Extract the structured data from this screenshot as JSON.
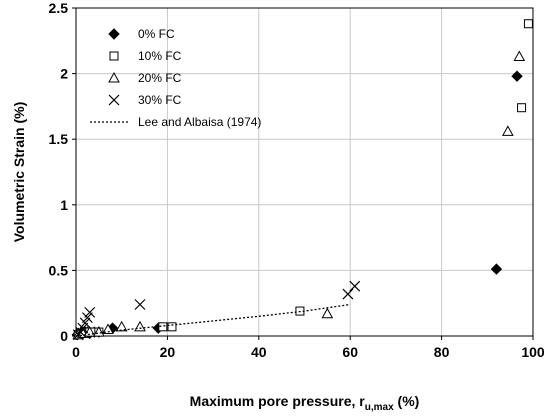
{
  "chart_data": {
    "type": "scatter",
    "xlabel": "Maximum pore pressure, r",
    "xlabel_sub": "u,max",
    "xlabel_suffix": " (%)",
    "ylabel": "Volumetric Strain (%)",
    "xlim": [
      0,
      100
    ],
    "ylim": [
      0,
      2.5
    ],
    "xticks": [
      0,
      20,
      40,
      60,
      80,
      100
    ],
    "yticks": [
      0,
      0.5,
      1,
      1.5,
      2,
      2.5
    ],
    "xtick_labels": [
      "0",
      "20",
      "40",
      "60",
      "80",
      "100"
    ],
    "ytick_labels": [
      "0",
      "0.5",
      "1",
      "1.5",
      "2",
      "2.5"
    ],
    "grid": true,
    "legend_position": "top-left",
    "series": [
      {
        "name": "0% FC",
        "marker": "diamond-filled",
        "points": [
          [
            0.3,
            0.01
          ],
          [
            0.6,
            0.02
          ],
          [
            1.0,
            0.02
          ],
          [
            1.5,
            0.03
          ],
          [
            2.0,
            0.03
          ],
          [
            2.5,
            0.03
          ],
          [
            3.0,
            0.02
          ],
          [
            4.0,
            0.03
          ],
          [
            5.0,
            0.03
          ],
          [
            8.0,
            0.06
          ],
          [
            18.0,
            0.06
          ],
          [
            92.0,
            0.51
          ],
          [
            96.5,
            1.98
          ]
        ]
      },
      {
        "name": "10% FC",
        "marker": "square-open",
        "points": [
          [
            0.5,
            0.01
          ],
          [
            1.0,
            0.02
          ],
          [
            2.0,
            0.03
          ],
          [
            3.0,
            0.03
          ],
          [
            4.0,
            0.03
          ],
          [
            5.0,
            0.03
          ],
          [
            19.0,
            0.07
          ],
          [
            21.0,
            0.07
          ],
          [
            49.0,
            0.19
          ],
          [
            97.5,
            1.74
          ],
          [
            99.0,
            2.38
          ]
        ]
      },
      {
        "name": "20% FC",
        "marker": "triangle-open",
        "points": [
          [
            0.5,
            0.01
          ],
          [
            1.5,
            0.02
          ],
          [
            3.0,
            0.03
          ],
          [
            5.0,
            0.03
          ],
          [
            7.0,
            0.05
          ],
          [
            10.0,
            0.07
          ],
          [
            14.0,
            0.07
          ],
          [
            55.0,
            0.17
          ],
          [
            94.5,
            1.56
          ],
          [
            97.0,
            2.13
          ]
        ]
      },
      {
        "name": "30% FC",
        "marker": "x",
        "points": [
          [
            0.5,
            0.01
          ],
          [
            1.0,
            0.03
          ],
          [
            1.5,
            0.06
          ],
          [
            2.0,
            0.1
          ],
          [
            2.5,
            0.14
          ],
          [
            3.0,
            0.18
          ],
          [
            14.0,
            0.24
          ],
          [
            59.5,
            0.32
          ],
          [
            61.0,
            0.38
          ]
        ]
      },
      {
        "name": "Lee and Albaisa (1974)",
        "marker": "dotted-line",
        "points": [
          [
            0,
            0.0
          ],
          [
            10,
            0.045
          ],
          [
            20,
            0.08
          ],
          [
            30,
            0.115
          ],
          [
            40,
            0.15
          ],
          [
            50,
            0.19
          ],
          [
            60,
            0.24
          ]
        ]
      }
    ]
  }
}
